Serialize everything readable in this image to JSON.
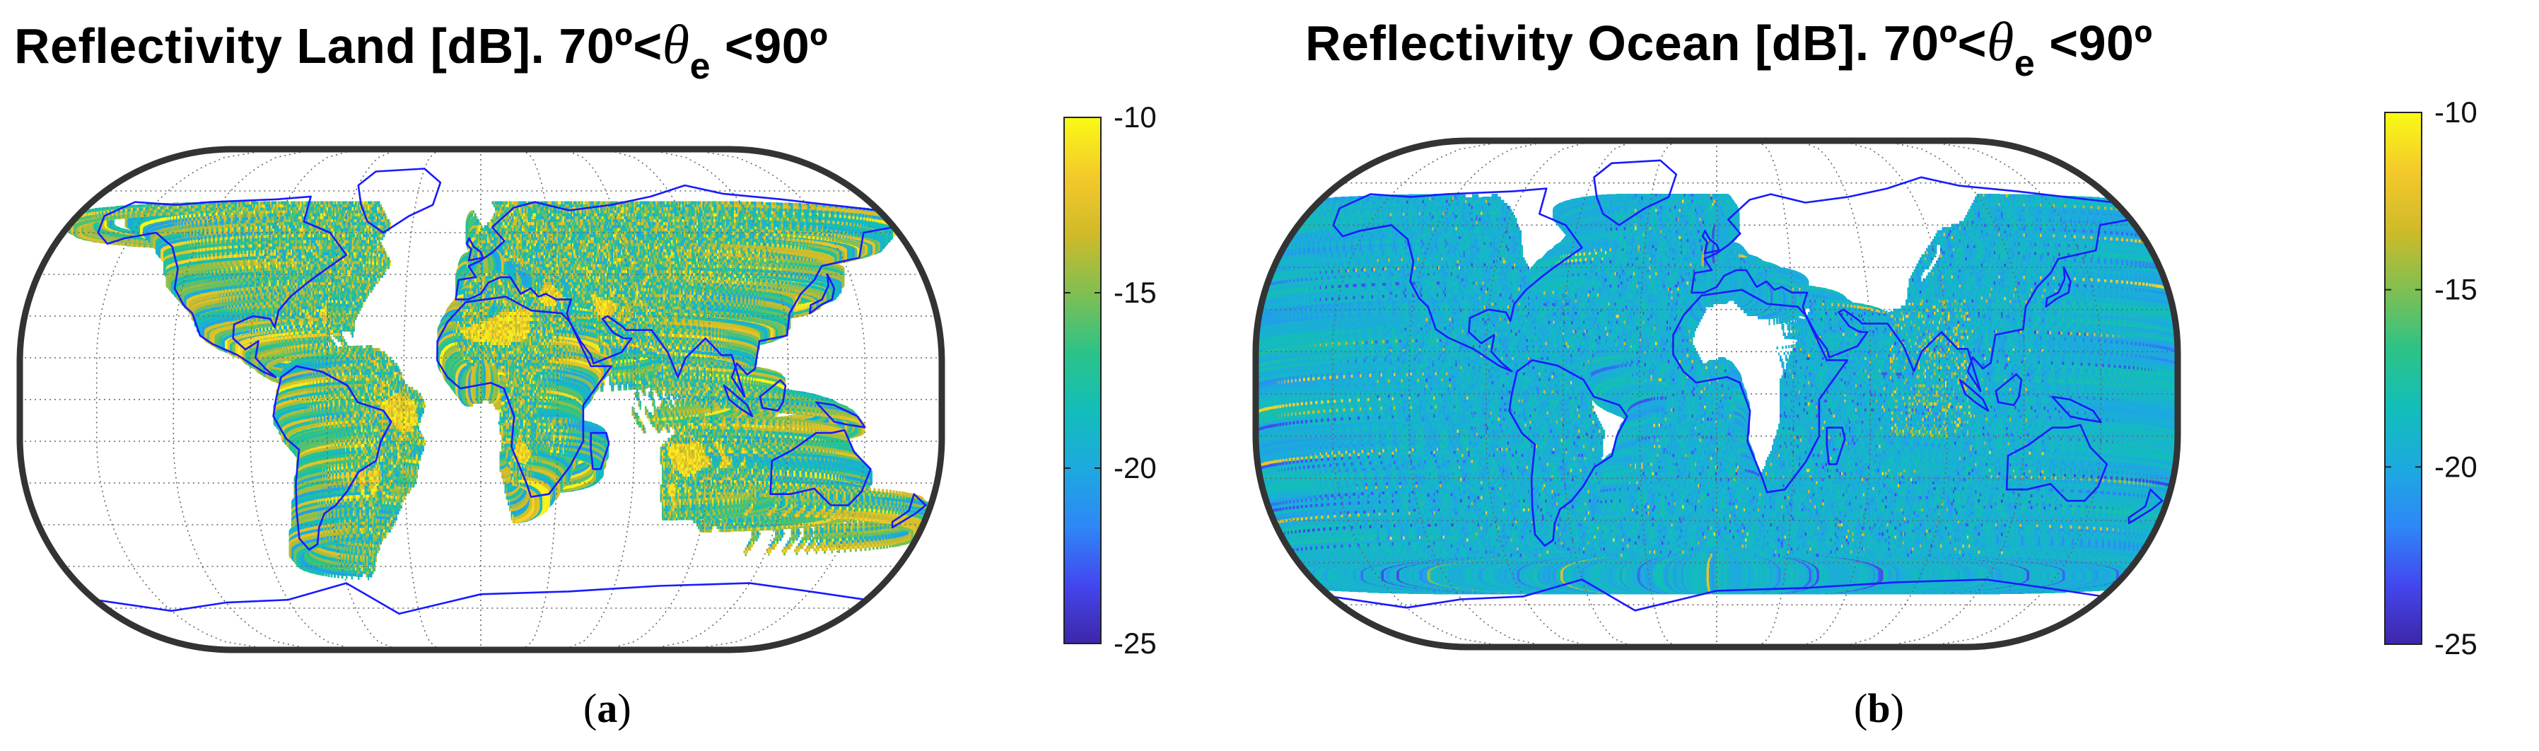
{
  "panels": [
    {
      "id": "a",
      "title_prefix": "Reflectivity Land [dB]. 70º<",
      "title_symbol": "θ",
      "title_subscript": "e",
      "title_suffix": " <90º",
      "caption_open": "(",
      "caption_letter": "a",
      "caption_close": ")",
      "fill": "land"
    },
    {
      "id": "b",
      "title_prefix": "Reflectivity Ocean [dB]. 70º<",
      "title_symbol": "θ",
      "title_subscript": "e",
      "title_suffix": " <90º",
      "caption_open": "(",
      "caption_letter": "b",
      "caption_close": ")",
      "fill": "ocean"
    }
  ],
  "colorbar": {
    "ticks": [
      "-10",
      "-15",
      "-20",
      "-25"
    ],
    "range": [
      -25,
      -10
    ],
    "colormap": "parula",
    "colors": [
      "#3e26a8",
      "#4347ef",
      "#2e87f7",
      "#1caadf",
      "#12beb9",
      "#2dc386",
      "#81bf51",
      "#d0ba29",
      "#f4c92b",
      "#f9fb15"
    ]
  },
  "map": {
    "projection": "Eckert-like pseudocylindrical",
    "graticule": "dotted",
    "coastline_color": "#1a1aff",
    "frame_color": "#333333",
    "ocean_band_latitude": [
      -60,
      60
    ]
  }
}
